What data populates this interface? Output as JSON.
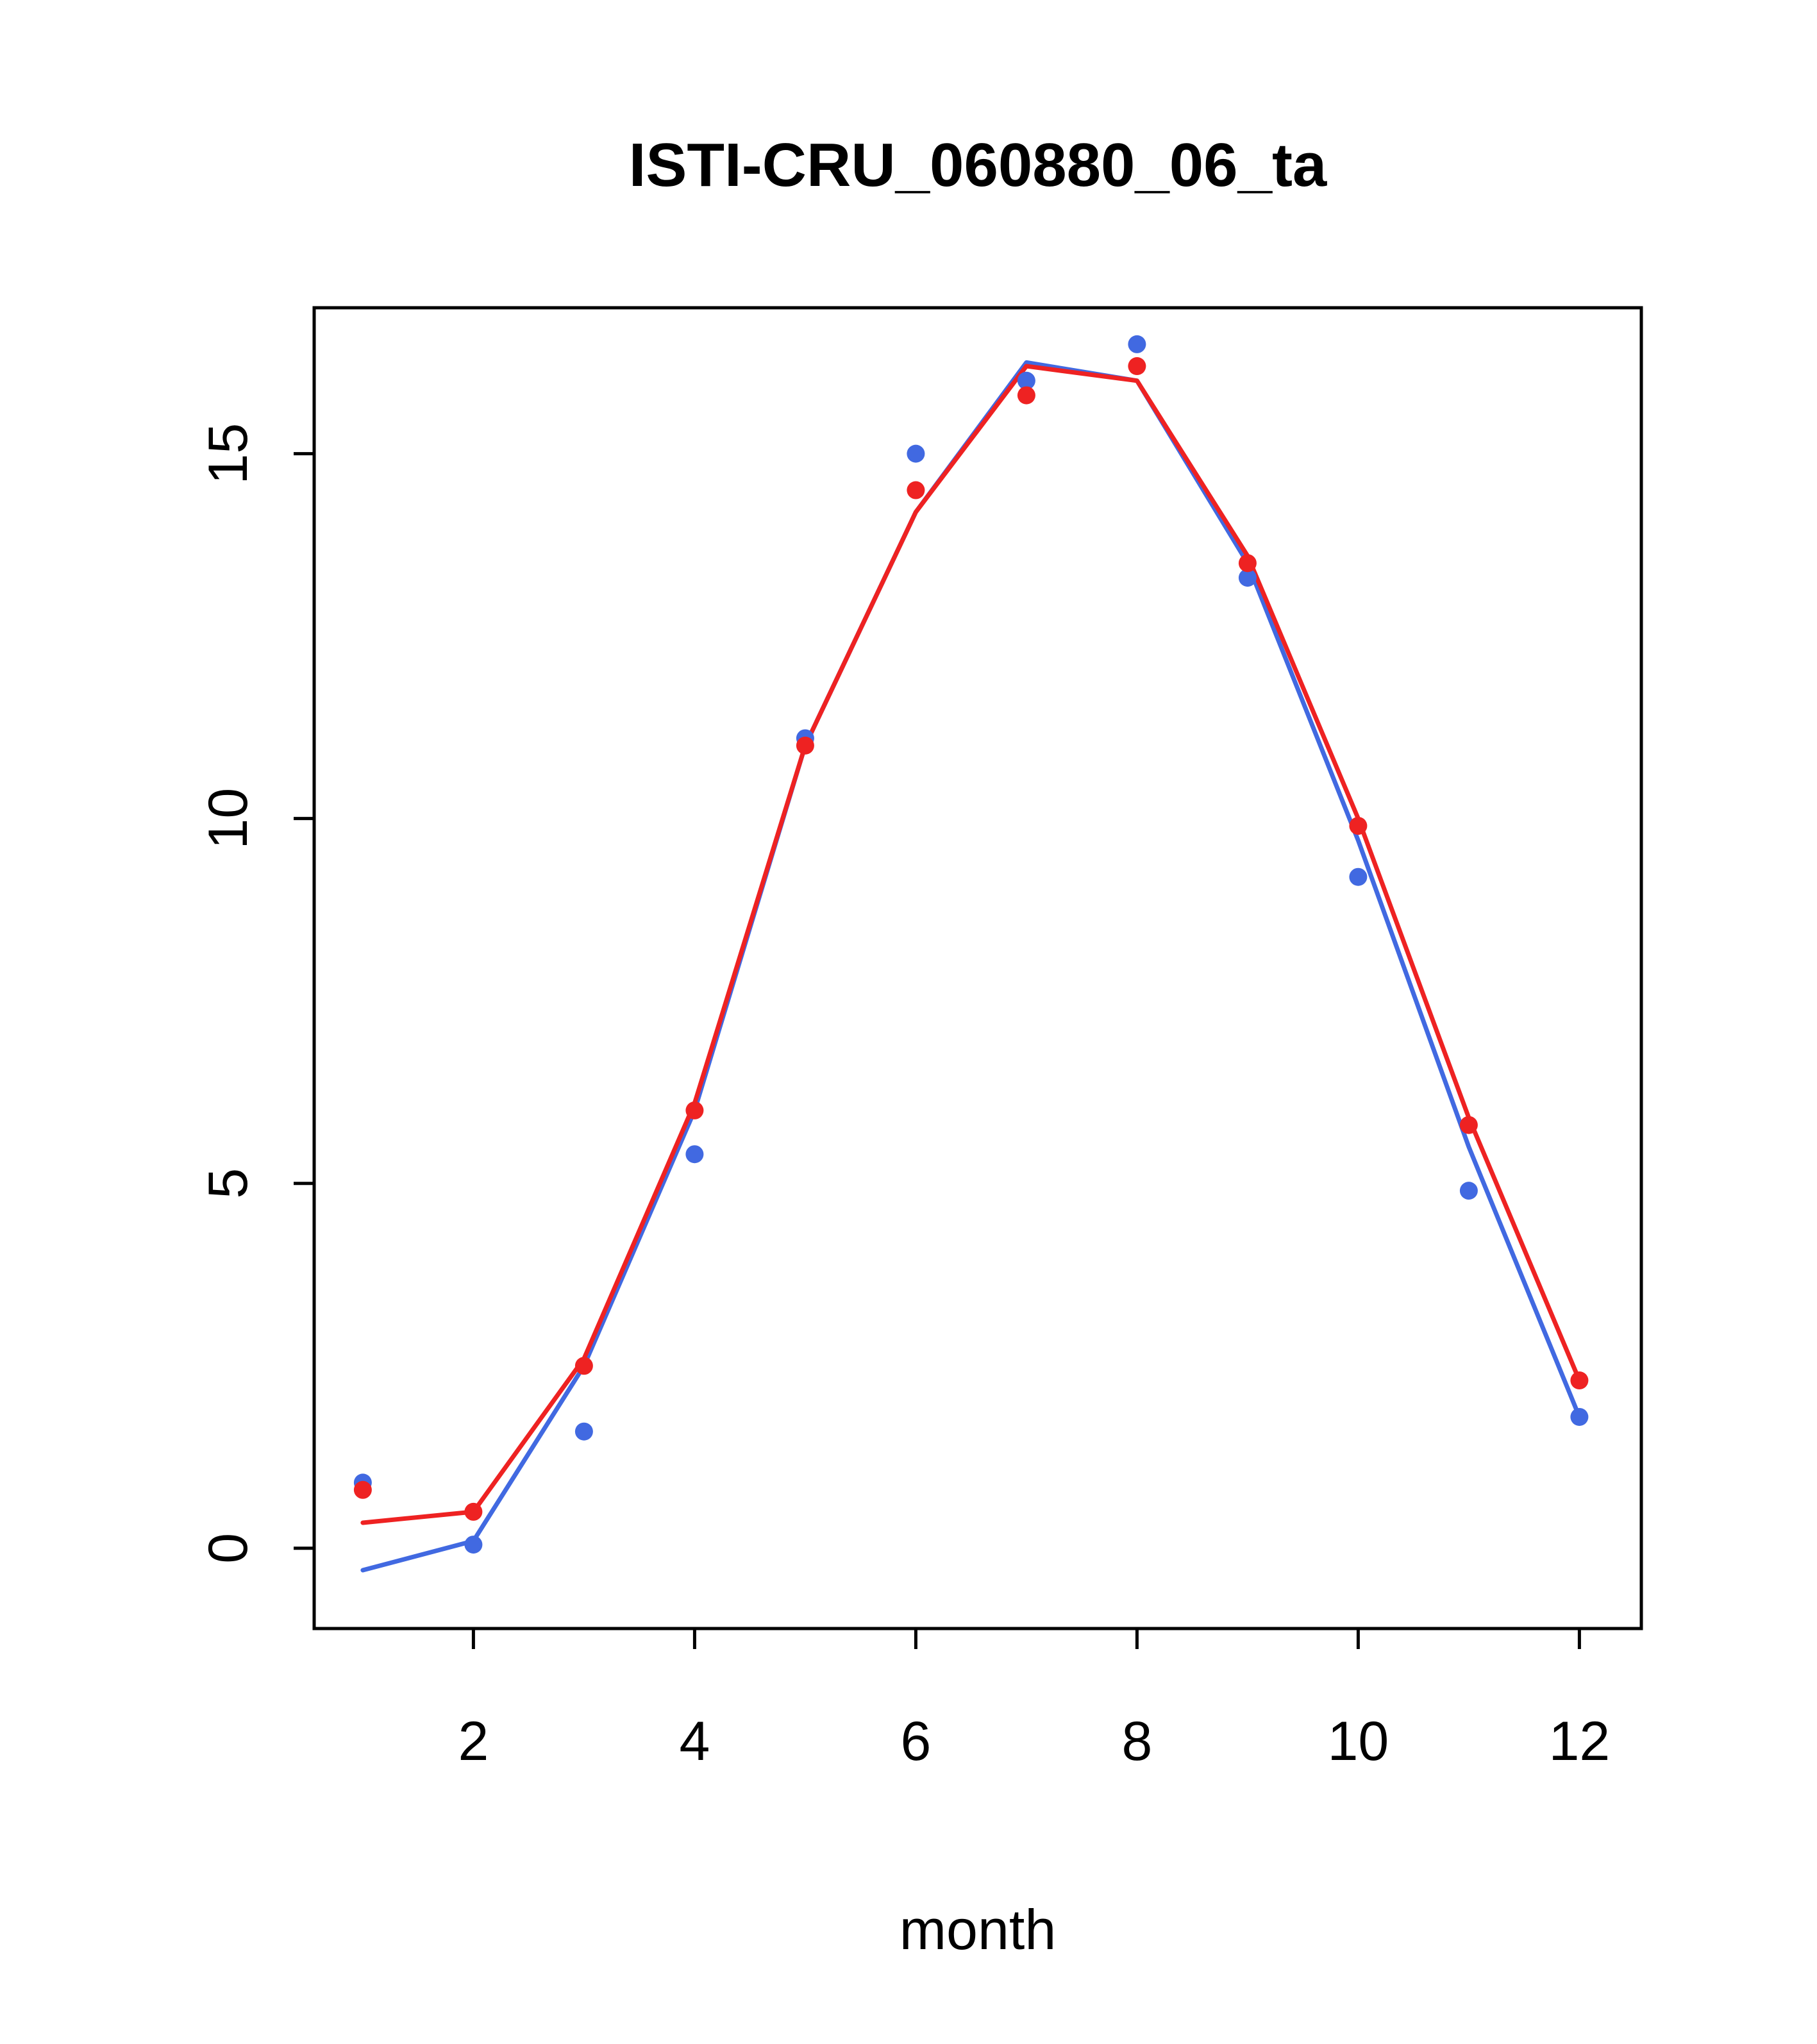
{
  "figure": {
    "background": "#ffffff"
  },
  "chart_data": {
    "type": "line",
    "title": "ISTI-CRU_060880_06_ta",
    "xlabel": "month",
    "ylabel": "",
    "x": [
      1,
      2,
      3,
      4,
      5,
      6,
      7,
      8,
      9,
      10,
      11,
      12
    ],
    "xlim": [
      0.56,
      12.56
    ],
    "ylim": [
      -1.1,
      17.0
    ],
    "x_ticks": [
      2,
      4,
      6,
      8,
      10,
      12
    ],
    "y_ticks": [
      0,
      5,
      10,
      15
    ],
    "grid": false,
    "legend": "none",
    "colors": {
      "red": "#ee2222",
      "blue": "#4169e1",
      "axis": "#000000"
    },
    "series": [
      {
        "name": "blue-line",
        "kind": "line",
        "color": "#4169e1",
        "values": [
          -0.3,
          0.1,
          2.5,
          6.0,
          11.0,
          14.2,
          16.25,
          16.0,
          13.5,
          9.7,
          5.5,
          1.8
        ]
      },
      {
        "name": "red-line",
        "kind": "line",
        "color": "#ee2222",
        "values": [
          0.35,
          0.5,
          2.6,
          6.1,
          11.0,
          14.2,
          16.2,
          16.0,
          13.6,
          10.0,
          5.9,
          2.3
        ]
      },
      {
        "name": "blue-points",
        "kind": "points",
        "color": "#4169e1",
        "values": [
          0.9,
          0.05,
          1.6,
          5.4,
          11.1,
          15.0,
          16.0,
          16.5,
          13.3,
          9.2,
          4.9,
          1.8
        ]
      },
      {
        "name": "red-points",
        "kind": "points",
        "color": "#ee2222",
        "values": [
          0.8,
          0.5,
          2.5,
          6.0,
          11.0,
          14.5,
          15.8,
          16.2,
          13.5,
          9.9,
          5.8,
          2.3
        ]
      }
    ]
  }
}
